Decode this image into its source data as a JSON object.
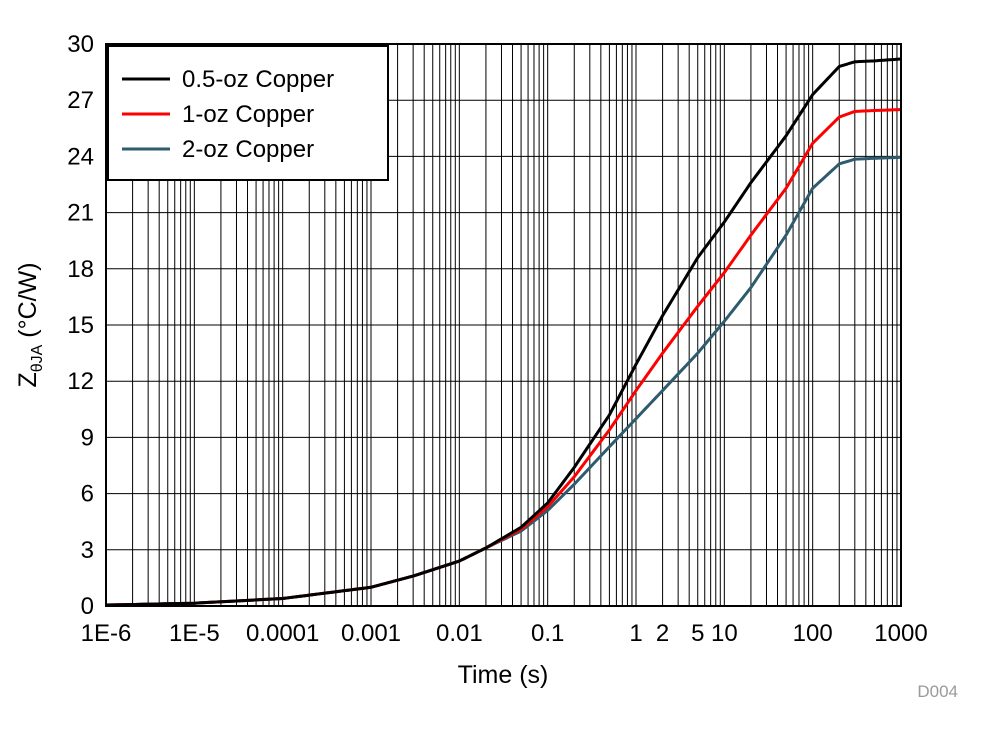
{
  "chart_data": {
    "type": "line",
    "title": "",
    "xlabel": "Time (s)",
    "ylabel": {
      "main": "Z",
      "sub": "θJA",
      "unit": " (°C/W)"
    },
    "xscale": "log",
    "xlim": [
      1e-06,
      1000
    ],
    "ylim": [
      0,
      30
    ],
    "grid": true,
    "legend_position": "top-left",
    "figure_id": "D004",
    "x_tick_labels": [
      {
        "value": 1e-06,
        "label": "1E-6"
      },
      {
        "value": 1e-05,
        "label": "1E-5"
      },
      {
        "value": 0.0001,
        "label": "0.0001"
      },
      {
        "value": 0.001,
        "label": "0.001"
      },
      {
        "value": 0.01,
        "label": "0.01"
      },
      {
        "value": 0.1,
        "label": "0.1"
      },
      {
        "value": 1,
        "label": "1"
      },
      {
        "value": 2,
        "label": "2"
      },
      {
        "value": 5,
        "label": "5"
      },
      {
        "value": 10,
        "label": "10"
      },
      {
        "value": 100,
        "label": "100"
      },
      {
        "value": 1000,
        "label": "1000"
      }
    ],
    "y_ticks": [
      0,
      3,
      6,
      9,
      12,
      15,
      18,
      21,
      24,
      27,
      30
    ],
    "series": [
      {
        "name": "0.5-oz Copper",
        "color": "#000000",
        "points": [
          [
            1e-06,
            0.05
          ],
          [
            1e-05,
            0.15
          ],
          [
            0.0001,
            0.4
          ],
          [
            0.001,
            1.0
          ],
          [
            0.003,
            1.6
          ],
          [
            0.01,
            2.4
          ],
          [
            0.02,
            3.1
          ],
          [
            0.05,
            4.2
          ],
          [
            0.1,
            5.5
          ],
          [
            0.2,
            7.4
          ],
          [
            0.5,
            10.2
          ],
          [
            1,
            12.9
          ],
          [
            2,
            15.5
          ],
          [
            5,
            18.6
          ],
          [
            10,
            20.5
          ],
          [
            20,
            22.6
          ],
          [
            50,
            25.1
          ],
          [
            100,
            27.3
          ],
          [
            200,
            28.8
          ],
          [
            300,
            29.05
          ],
          [
            500,
            29.1
          ],
          [
            1000,
            29.2
          ]
        ]
      },
      {
        "name": "1-oz Copper",
        "color": "#ff0000",
        "points": [
          [
            1e-06,
            0.05
          ],
          [
            1e-05,
            0.15
          ],
          [
            0.0001,
            0.4
          ],
          [
            0.001,
            1.0
          ],
          [
            0.003,
            1.6
          ],
          [
            0.01,
            2.4
          ],
          [
            0.02,
            3.1
          ],
          [
            0.05,
            4.1
          ],
          [
            0.1,
            5.3
          ],
          [
            0.2,
            6.9
          ],
          [
            0.5,
            9.4
          ],
          [
            1,
            11.5
          ],
          [
            2,
            13.5
          ],
          [
            5,
            16.0
          ],
          [
            10,
            17.8
          ],
          [
            20,
            19.8
          ],
          [
            50,
            22.3
          ],
          [
            100,
            24.7
          ],
          [
            200,
            26.1
          ],
          [
            300,
            26.4
          ],
          [
            500,
            26.45
          ],
          [
            1000,
            26.5
          ]
        ]
      },
      {
        "name": "2-oz Copper",
        "color": "#2e5b6e",
        "points": [
          [
            1e-06,
            0.05
          ],
          [
            1e-05,
            0.15
          ],
          [
            0.0001,
            0.4
          ],
          [
            0.001,
            1.0
          ],
          [
            0.003,
            1.6
          ],
          [
            0.01,
            2.4
          ],
          [
            0.02,
            3.1
          ],
          [
            0.05,
            4.0
          ],
          [
            0.1,
            5.1
          ],
          [
            0.2,
            6.5
          ],
          [
            0.5,
            8.5
          ],
          [
            1,
            10.0
          ],
          [
            2,
            11.5
          ],
          [
            5,
            13.5
          ],
          [
            10,
            15.2
          ],
          [
            20,
            17.0
          ],
          [
            50,
            19.8
          ],
          [
            100,
            22.3
          ],
          [
            200,
            23.6
          ],
          [
            300,
            23.85
          ],
          [
            500,
            23.9
          ],
          [
            1000,
            23.95
          ]
        ]
      }
    ]
  }
}
